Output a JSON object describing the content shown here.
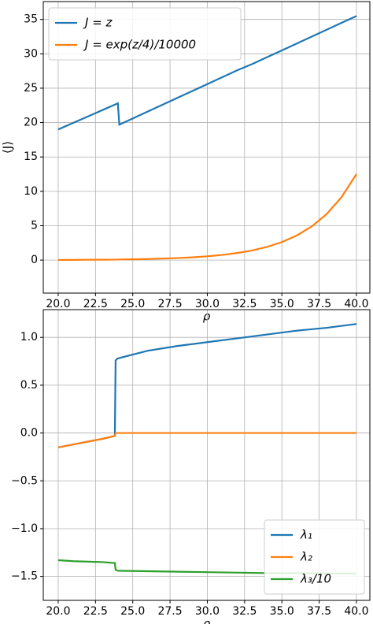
{
  "chart_data": [
    {
      "type": "line",
      "x_label": "ρ",
      "y_label": "⟨J⟩",
      "x": [
        20,
        21,
        22,
        23,
        24,
        24.1,
        25,
        26,
        27,
        28,
        29,
        30,
        31,
        32,
        33,
        34,
        35,
        36,
        37,
        38,
        39,
        40
      ],
      "series": [
        {
          "name": "J = z",
          "color": "#1f77b4",
          "values": [
            19,
            19.95,
            20.9,
            21.85,
            22.8,
            19.7,
            20.6,
            21.6,
            22.6,
            23.6,
            24.6,
            25.6,
            26.6,
            27.6,
            28.5,
            29.5,
            30.5,
            31.5,
            32.5,
            33.5,
            34.5,
            35.5
          ]
        },
        {
          "name": "J = exp(z/4)/10000",
          "color": "#ff7f0e",
          "values": [
            0.02,
            0.03,
            0.05,
            0.06,
            0.08,
            0.09,
            0.11,
            0.16,
            0.22,
            0.29,
            0.4,
            0.55,
            0.75,
            1.03,
            1.4,
            1.92,
            2.62,
            3.58,
            4.89,
            6.69,
            9.15,
            12.5
          ]
        }
      ],
      "xlim": [
        19,
        40.9
      ],
      "ylim": [
        -4.8,
        37.6
      ],
      "xticks": [
        {
          "value": 20,
          "label": "20.0"
        },
        {
          "value": 22.5,
          "label": "22.5"
        },
        {
          "value": 25,
          "label": "25.0"
        },
        {
          "value": 27.5,
          "label": "27.5"
        },
        {
          "value": 30,
          "label": "30.0"
        },
        {
          "value": 32.5,
          "label": "32.5"
        },
        {
          "value": 35,
          "label": "35.0"
        },
        {
          "value": 37.5,
          "label": "37.5"
        },
        {
          "value": 40,
          "label": "40.0"
        }
      ],
      "yticks": [
        0,
        5,
        10,
        15,
        20,
        25,
        30,
        35
      ],
      "grid": true,
      "legend": "upper left"
    },
    {
      "type": "line",
      "x_label": "ρ",
      "x": [
        20,
        21,
        22,
        23,
        23.8,
        23.85,
        24,
        26,
        28,
        30,
        32,
        34,
        36,
        38,
        40
      ],
      "series": [
        {
          "name": "λ₁",
          "color": "#1f77b4",
          "values": [
            -0.15,
            -0.12,
            -0.09,
            -0.06,
            -0.03,
            0.76,
            0.78,
            0.86,
            0.91,
            0.95,
            0.99,
            1.03,
            1.07,
            1.1,
            1.14
          ]
        },
        {
          "name": "λ₂",
          "color": "#ff7f0e",
          "values": [
            -0.15,
            -0.12,
            -0.09,
            -0.06,
            -0.03,
            0,
            0,
            0,
            0,
            0,
            0,
            0,
            0,
            0,
            0
          ]
        },
        {
          "name": "λ₃/10",
          "color": "#2ca02c",
          "values": [
            -1.33,
            -1.34,
            -1.345,
            -1.35,
            -1.36,
            -1.43,
            -1.44,
            -1.445,
            -1.45,
            -1.455,
            -1.46,
            -1.465,
            -1.465,
            -1.47,
            -1.47
          ]
        }
      ],
      "xlim": [
        19,
        40.9
      ],
      "ylim": [
        -1.75,
        1.29
      ],
      "xticks": [
        {
          "value": 20,
          "label": "20.0"
        },
        {
          "value": 22.5,
          "label": "22.5"
        },
        {
          "value": 25,
          "label": "25.0"
        },
        {
          "value": 27.5,
          "label": "27.5"
        },
        {
          "value": 30,
          "label": "30.0"
        },
        {
          "value": 32.5,
          "label": "32.5"
        },
        {
          "value": 35,
          "label": "35.0"
        },
        {
          "value": 37.5,
          "label": "37.5"
        },
        {
          "value": 40,
          "label": "40.0"
        }
      ],
      "yticks": [
        {
          "value": -1.5,
          "label": "−1.5"
        },
        {
          "value": -1,
          "label": "−1.0"
        },
        {
          "value": -0.5,
          "label": "−0.5"
        },
        {
          "value": 0,
          "label": "0.0"
        },
        {
          "value": 0.5,
          "label": "0.5"
        },
        {
          "value": 1,
          "label": "1.0"
        }
      ],
      "grid": true,
      "legend": "lower right"
    }
  ]
}
